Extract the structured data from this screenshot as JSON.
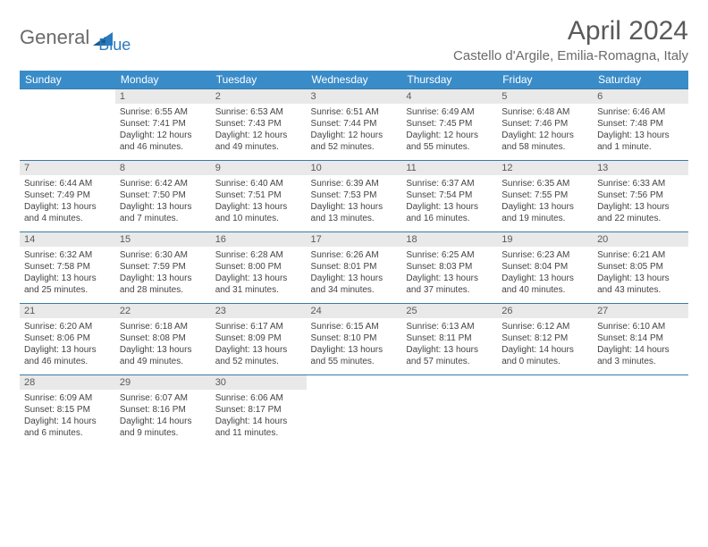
{
  "logo": {
    "text1": "General",
    "text2": "Blue"
  },
  "title": "April 2024",
  "location": "Castello d'Argile, Emilia-Romagna, Italy",
  "colors": {
    "header_bg": "#3a8cc9",
    "header_text": "#ffffff",
    "daynum_bg": "#e9e9e9",
    "border": "#3a7ba8",
    "logo_gray": "#6a6a6a",
    "logo_blue": "#2b7bbf",
    "text": "#444444"
  },
  "dows": [
    "Sunday",
    "Monday",
    "Tuesday",
    "Wednesday",
    "Thursday",
    "Friday",
    "Saturday"
  ],
  "weeks": [
    [
      {
        "n": "",
        "sr": "",
        "ss": "",
        "dl": ""
      },
      {
        "n": "1",
        "sr": "Sunrise: 6:55 AM",
        "ss": "Sunset: 7:41 PM",
        "dl": "Daylight: 12 hours and 46 minutes."
      },
      {
        "n": "2",
        "sr": "Sunrise: 6:53 AM",
        "ss": "Sunset: 7:43 PM",
        "dl": "Daylight: 12 hours and 49 minutes."
      },
      {
        "n": "3",
        "sr": "Sunrise: 6:51 AM",
        "ss": "Sunset: 7:44 PM",
        "dl": "Daylight: 12 hours and 52 minutes."
      },
      {
        "n": "4",
        "sr": "Sunrise: 6:49 AM",
        "ss": "Sunset: 7:45 PM",
        "dl": "Daylight: 12 hours and 55 minutes."
      },
      {
        "n": "5",
        "sr": "Sunrise: 6:48 AM",
        "ss": "Sunset: 7:46 PM",
        "dl": "Daylight: 12 hours and 58 minutes."
      },
      {
        "n": "6",
        "sr": "Sunrise: 6:46 AM",
        "ss": "Sunset: 7:48 PM",
        "dl": "Daylight: 13 hours and 1 minute."
      }
    ],
    [
      {
        "n": "7",
        "sr": "Sunrise: 6:44 AM",
        "ss": "Sunset: 7:49 PM",
        "dl": "Daylight: 13 hours and 4 minutes."
      },
      {
        "n": "8",
        "sr": "Sunrise: 6:42 AM",
        "ss": "Sunset: 7:50 PM",
        "dl": "Daylight: 13 hours and 7 minutes."
      },
      {
        "n": "9",
        "sr": "Sunrise: 6:40 AM",
        "ss": "Sunset: 7:51 PM",
        "dl": "Daylight: 13 hours and 10 minutes."
      },
      {
        "n": "10",
        "sr": "Sunrise: 6:39 AM",
        "ss": "Sunset: 7:53 PM",
        "dl": "Daylight: 13 hours and 13 minutes."
      },
      {
        "n": "11",
        "sr": "Sunrise: 6:37 AM",
        "ss": "Sunset: 7:54 PM",
        "dl": "Daylight: 13 hours and 16 minutes."
      },
      {
        "n": "12",
        "sr": "Sunrise: 6:35 AM",
        "ss": "Sunset: 7:55 PM",
        "dl": "Daylight: 13 hours and 19 minutes."
      },
      {
        "n": "13",
        "sr": "Sunrise: 6:33 AM",
        "ss": "Sunset: 7:56 PM",
        "dl": "Daylight: 13 hours and 22 minutes."
      }
    ],
    [
      {
        "n": "14",
        "sr": "Sunrise: 6:32 AM",
        "ss": "Sunset: 7:58 PM",
        "dl": "Daylight: 13 hours and 25 minutes."
      },
      {
        "n": "15",
        "sr": "Sunrise: 6:30 AM",
        "ss": "Sunset: 7:59 PM",
        "dl": "Daylight: 13 hours and 28 minutes."
      },
      {
        "n": "16",
        "sr": "Sunrise: 6:28 AM",
        "ss": "Sunset: 8:00 PM",
        "dl": "Daylight: 13 hours and 31 minutes."
      },
      {
        "n": "17",
        "sr": "Sunrise: 6:26 AM",
        "ss": "Sunset: 8:01 PM",
        "dl": "Daylight: 13 hours and 34 minutes."
      },
      {
        "n": "18",
        "sr": "Sunrise: 6:25 AM",
        "ss": "Sunset: 8:03 PM",
        "dl": "Daylight: 13 hours and 37 minutes."
      },
      {
        "n": "19",
        "sr": "Sunrise: 6:23 AM",
        "ss": "Sunset: 8:04 PM",
        "dl": "Daylight: 13 hours and 40 minutes."
      },
      {
        "n": "20",
        "sr": "Sunrise: 6:21 AM",
        "ss": "Sunset: 8:05 PM",
        "dl": "Daylight: 13 hours and 43 minutes."
      }
    ],
    [
      {
        "n": "21",
        "sr": "Sunrise: 6:20 AM",
        "ss": "Sunset: 8:06 PM",
        "dl": "Daylight: 13 hours and 46 minutes."
      },
      {
        "n": "22",
        "sr": "Sunrise: 6:18 AM",
        "ss": "Sunset: 8:08 PM",
        "dl": "Daylight: 13 hours and 49 minutes."
      },
      {
        "n": "23",
        "sr": "Sunrise: 6:17 AM",
        "ss": "Sunset: 8:09 PM",
        "dl": "Daylight: 13 hours and 52 minutes."
      },
      {
        "n": "24",
        "sr": "Sunrise: 6:15 AM",
        "ss": "Sunset: 8:10 PM",
        "dl": "Daylight: 13 hours and 55 minutes."
      },
      {
        "n": "25",
        "sr": "Sunrise: 6:13 AM",
        "ss": "Sunset: 8:11 PM",
        "dl": "Daylight: 13 hours and 57 minutes."
      },
      {
        "n": "26",
        "sr": "Sunrise: 6:12 AM",
        "ss": "Sunset: 8:12 PM",
        "dl": "Daylight: 14 hours and 0 minutes."
      },
      {
        "n": "27",
        "sr": "Sunrise: 6:10 AM",
        "ss": "Sunset: 8:14 PM",
        "dl": "Daylight: 14 hours and 3 minutes."
      }
    ],
    [
      {
        "n": "28",
        "sr": "Sunrise: 6:09 AM",
        "ss": "Sunset: 8:15 PM",
        "dl": "Daylight: 14 hours and 6 minutes."
      },
      {
        "n": "29",
        "sr": "Sunrise: 6:07 AM",
        "ss": "Sunset: 8:16 PM",
        "dl": "Daylight: 14 hours and 9 minutes."
      },
      {
        "n": "30",
        "sr": "Sunrise: 6:06 AM",
        "ss": "Sunset: 8:17 PM",
        "dl": "Daylight: 14 hours and 11 minutes."
      },
      {
        "n": "",
        "sr": "",
        "ss": "",
        "dl": ""
      },
      {
        "n": "",
        "sr": "",
        "ss": "",
        "dl": ""
      },
      {
        "n": "",
        "sr": "",
        "ss": "",
        "dl": ""
      },
      {
        "n": "",
        "sr": "",
        "ss": "",
        "dl": ""
      }
    ]
  ]
}
